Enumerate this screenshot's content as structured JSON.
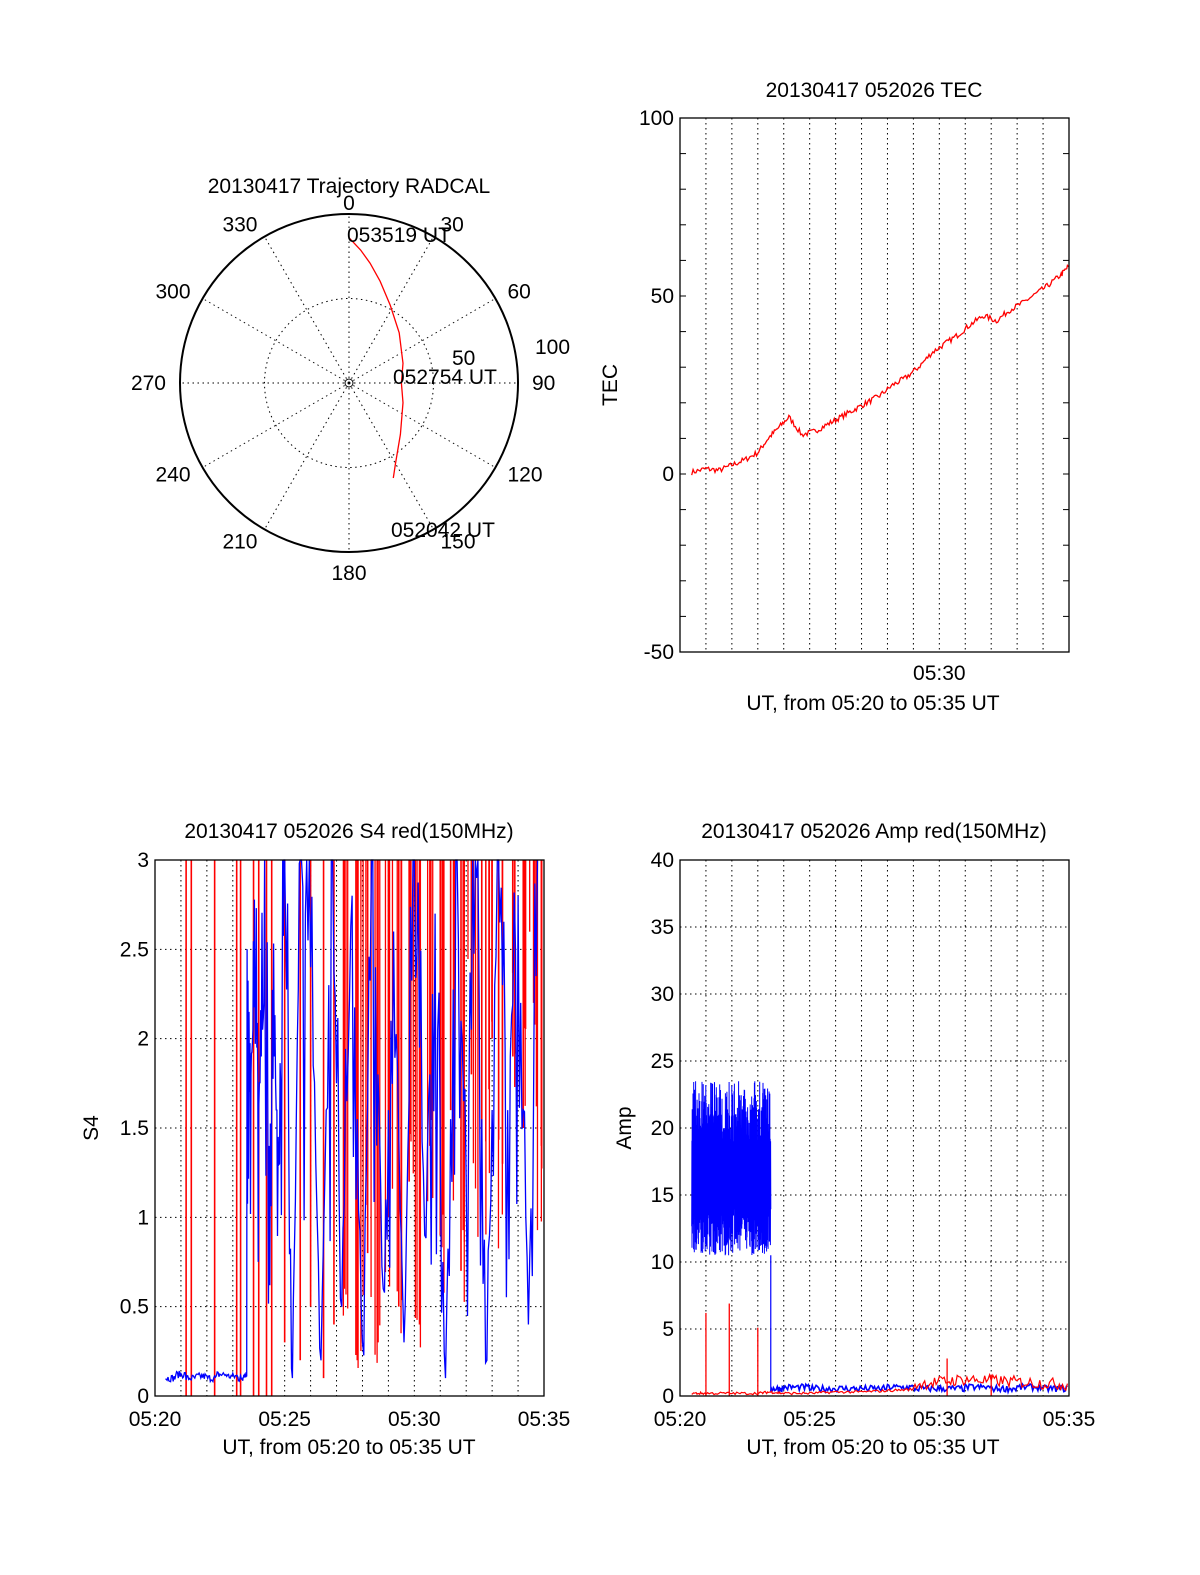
{
  "chart_data": [
    {
      "id": "trajectory",
      "type": "polar",
      "title": "20130417 Trajectory RADCAL",
      "azimuth_labels": [
        "0",
        "30",
        "60",
        "90",
        "120",
        "150",
        "180",
        "210",
        "240",
        "270",
        "300",
        "330"
      ],
      "radial_labels": [
        "50",
        "100"
      ],
      "radial_range": [
        0,
        100
      ],
      "annotations": [
        "053519 UT",
        "052754 UT",
        "052042 UT"
      ],
      "series": [
        {
          "color": "#ff0000",
          "points_az_r": [
            [
              0,
              86
            ],
            [
              5,
              79
            ],
            [
              10,
              72
            ],
            [
              17,
              63
            ],
            [
              28,
              52
            ],
            [
              45,
              42
            ],
            [
              70,
              34
            ],
            [
              90,
              31
            ],
            [
              110,
              34
            ],
            [
              135,
              43
            ],
            [
              150,
              55
            ],
            [
              155,
              62
            ]
          ]
        }
      ]
    },
    {
      "id": "tec",
      "type": "line",
      "title": "20130417 052026 TEC",
      "xlabel": "UT, from 05:20 to 05:35 UT",
      "ylabel": "TEC",
      "xlim": [
        20,
        35
      ],
      "ylim": [
        -50,
        100
      ],
      "x_tick_labels": [
        {
          "x": 30,
          "label": "05:30"
        }
      ],
      "y_ticks": [
        -50,
        0,
        50,
        100
      ],
      "grid": true,
      "series": [
        {
          "color": "#ff0000",
          "x": [
            20.45,
            21.0,
            21.5,
            22.0,
            22.5,
            23.0,
            23.4,
            23.8,
            24.2,
            24.7,
            25.2,
            25.7,
            26.2,
            26.7,
            27.2,
            27.7,
            28.2,
            28.7,
            29.2,
            29.7,
            30.2,
            30.7,
            31.2,
            31.7,
            32.2,
            32.7,
            33.2,
            33.7,
            34.2,
            34.7,
            35.0
          ],
          "y": [
            0.5,
            1.5,
            1.0,
            2.5,
            4.0,
            6.0,
            10.0,
            13.0,
            16.0,
            11.0,
            12.0,
            14.0,
            16.0,
            18.0,
            20.0,
            22.0,
            25.0,
            27.0,
            30.0,
            34.0,
            36.5,
            39.0,
            42.0,
            44.5,
            43.0,
            46.0,
            48.0,
            50.5,
            53.0,
            56.0,
            58.5
          ]
        }
      ]
    },
    {
      "id": "s4",
      "type": "line",
      "title": "20130417 052026 S4 red(150MHz)",
      "xlabel": "UT, from 05:20 to 05:35 UT",
      "ylabel": "S4",
      "xlim": [
        20,
        35
      ],
      "ylim": [
        0,
        3
      ],
      "x_tick_labels": [
        {
          "x": 20,
          "label": "05:20"
        },
        {
          "x": 25,
          "label": "05:25"
        },
        {
          "x": 30,
          "label": "05:30"
        },
        {
          "x": 35,
          "label": "05:35"
        }
      ],
      "y_tick_labels": [
        {
          "y": 0,
          "label": "0"
        },
        {
          "y": 0.5,
          "label": "0.5"
        },
        {
          "y": 1,
          "label": "1"
        },
        {
          "y": 1.5,
          "label": "1.5"
        },
        {
          "y": 2,
          "label": "2"
        },
        {
          "y": 2.5,
          "label": "2.5"
        },
        {
          "y": 3,
          "label": "3"
        }
      ],
      "grid": true,
      "series": [
        {
          "color": "#0000ff",
          "x": [
            20.4,
            20.8,
            21.2,
            21.6,
            22.0,
            22.4,
            22.8,
            23.2,
            23.4,
            23.55,
            23.7,
            23.85,
            24.0,
            24.2,
            24.4,
            24.6,
            24.8,
            25.0,
            25.3,
            25.6,
            26.0,
            26.4,
            26.8,
            27.2,
            27.6,
            28.0,
            28.4,
            28.8,
            29.2,
            29.6,
            30.0,
            30.4,
            30.8,
            31.2,
            31.6,
            32.0,
            32.4,
            32.8,
            33.2,
            33.6,
            34.0,
            34.4,
            34.8
          ],
          "y": [
            0.1,
            0.12,
            0.1,
            0.11,
            0.1,
            0.12,
            0.11,
            0.1,
            0.12,
            2.5,
            1.8,
            2.3,
            1.6,
            2.2,
            1.4,
            1.9,
            1.3,
            3.0,
            0.1,
            3.0,
            2.4,
            0.2,
            3.0,
            0.5,
            2.8,
            0.3,
            3.0,
            0.6,
            2.6,
            0.3,
            3.0,
            0.9,
            2.7,
            0.1,
            3.0,
            1.2,
            2.9,
            0.2,
            3.0,
            1.6,
            2.8,
            0.4,
            3.0
          ]
        },
        {
          "color": "#ff0000",
          "spikes_x": [
            21.2,
            21.4,
            22.3,
            23.15,
            23.3,
            23.8,
            24.0,
            24.3,
            24.5,
            25.0,
            25.6,
            26.0,
            26.5,
            26.9,
            27.3,
            27.8,
            28.2,
            28.6,
            29.0,
            29.4,
            29.8,
            30.2,
            30.6,
            31.0,
            31.4,
            31.8,
            32.2,
            32.6,
            33.0,
            33.4,
            33.8,
            34.2,
            34.6,
            34.9
          ],
          "spikes_bottom": [
            0,
            0,
            0,
            0,
            0,
            0,
            0,
            0,
            0,
            0.3,
            0.2,
            0.5,
            0.1,
            0.4,
            0.6,
            0.2,
            0.8,
            0.3,
            1.0,
            0.5,
            1.2,
            0.4,
            1.4,
            0.9,
            1.6,
            0.7,
            1.8,
            1.1,
            2.0,
            1.3,
            1.9,
            1.5,
            2.2,
            1.4
          ],
          "spikes_top": [
            3,
            3,
            3,
            3,
            3,
            3,
            3,
            3,
            3,
            3,
            3,
            3,
            3,
            3,
            3,
            3,
            3,
            3,
            3,
            3,
            3,
            3,
            3,
            3,
            3,
            3,
            3,
            3,
            3,
            3,
            3,
            3,
            3,
            3
          ]
        }
      ]
    },
    {
      "id": "amp",
      "type": "line",
      "title": "20130417 052026 Amp red(150MHz)",
      "xlabel": "UT, from 05:20 to 05:35 UT",
      "ylabel": "Amp",
      "xlim": [
        20,
        35
      ],
      "ylim": [
        0,
        40
      ],
      "x_tick_labels": [
        {
          "x": 20,
          "label": "05:20"
        },
        {
          "x": 25,
          "label": "05:25"
        },
        {
          "x": 30,
          "label": "05:30"
        },
        {
          "x": 35,
          "label": "05:35"
        }
      ],
      "y_ticks": [
        0,
        5,
        10,
        15,
        20,
        25,
        30,
        35,
        40
      ],
      "grid": true,
      "series": [
        {
          "color": "#0000ff",
          "band": {
            "x_start": 20.45,
            "x_end": 23.5,
            "low": 10.5,
            "high": 23.5,
            "center": 16
          },
          "x": [
            23.5,
            24.0,
            25.0,
            26.0,
            27.0,
            28.0,
            29.0,
            30.0,
            31.0,
            32.0,
            33.0,
            34.0,
            35.0
          ],
          "y": [
            0.3,
            0.4,
            0.3,
            0.3,
            0.3,
            0.4,
            0.3,
            0.3,
            0.4,
            0.3,
            0.4,
            0.3,
            0.3
          ]
        },
        {
          "color": "#ff0000",
          "x": [
            20.45,
            21.0,
            22.0,
            23.0,
            23.5,
            24.0,
            25.0,
            26.0,
            27.0,
            28.0,
            29.0,
            30.0,
            31.0,
            32.0,
            33.0,
            34.0,
            35.0
          ],
          "y": [
            0.1,
            0.1,
            0.1,
            0.1,
            0.2,
            0.1,
            0.1,
            0.2,
            0.2,
            0.3,
            0.4,
            0.6,
            0.8,
            0.7,
            0.6,
            0.5,
            0.4
          ],
          "spikes_x": [
            21.0,
            21.9,
            23.0,
            30.3,
            32.0
          ],
          "spikes_y": [
            6.2,
            6.9,
            5.1,
            2.8,
            1.6
          ]
        }
      ]
    }
  ]
}
